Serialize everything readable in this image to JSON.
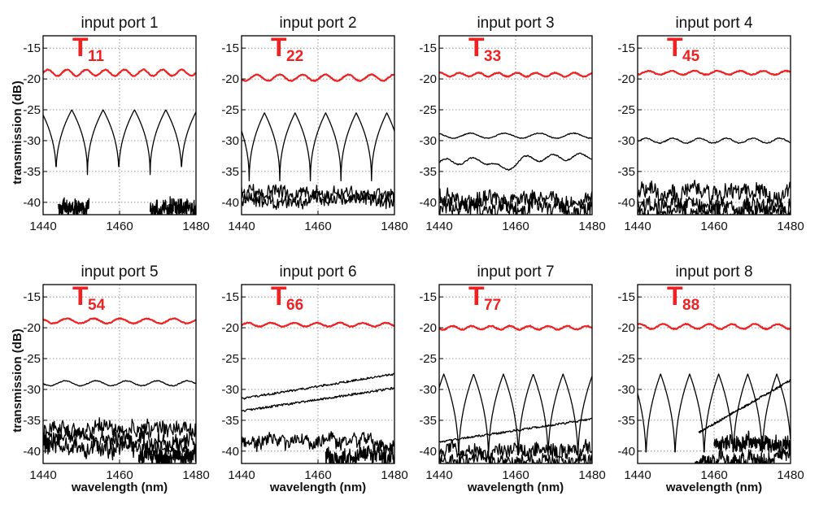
{
  "figure": {
    "ylabel": "transmission (dB)",
    "xlabel": "wavelength (nm)"
  },
  "colors": {
    "highlight": "#ee2222",
    "trace": "#000000",
    "grid": "#7a7a7a"
  },
  "chart_data": [
    {
      "type": "line",
      "title": "input port 1",
      "annotation": "T",
      "annotation_sub": "11",
      "xlim": [
        1440,
        1480
      ],
      "ylim": [
        -42,
        -13
      ],
      "xticks": [
        1440,
        1460,
        1480
      ],
      "yticks": [
        -15,
        -20,
        -25,
        -30,
        -35,
        -40
      ],
      "xlabel": "",
      "ylabel": "transmission (dB)",
      "grid": true,
      "series": [
        {
          "color": "#ee2222",
          "style": "wavy",
          "base": -19.0,
          "amp": 0.5,
          "period": 5,
          "x": [
            1440,
            1480
          ]
        },
        {
          "color": "#000000",
          "style": "comb",
          "top": -25.0,
          "bottom": -35.5,
          "period": 8.2,
          "phase": 1447.5,
          "x": [
            1440,
            1480
          ]
        },
        {
          "color": "#000000",
          "style": "noise",
          "base": -41.0,
          "amp": 1.2,
          "x": [
            1444,
            1452
          ]
        },
        {
          "color": "#000000",
          "style": "noise",
          "base": -41.0,
          "amp": 1.5,
          "x": [
            1468,
            1480
          ]
        }
      ]
    },
    {
      "type": "line",
      "title": "input port 2",
      "annotation": "T",
      "annotation_sub": "22",
      "xlim": [
        1440,
        1480
      ],
      "ylim": [
        -42,
        -13
      ],
      "xticks": [
        1440,
        1460,
        1480
      ],
      "yticks": [
        -15,
        -20,
        -25,
        -30,
        -35,
        -40
      ],
      "xlabel": "",
      "ylabel": "",
      "grid": true,
      "series": [
        {
          "color": "#ee2222",
          "style": "wavy",
          "base": -19.8,
          "amp": 0.5,
          "period": 6,
          "x": [
            1440,
            1480
          ]
        },
        {
          "color": "#000000",
          "style": "comb",
          "top": -25.5,
          "bottom": -36.5,
          "period": 8.0,
          "phase": 1446.0,
          "x": [
            1440,
            1480
          ]
        },
        {
          "color": "#000000",
          "style": "noise",
          "base": -38.5,
          "amp": 1.2,
          "x": [
            1440,
            1480
          ]
        },
        {
          "color": "#000000",
          "style": "noise",
          "base": -39.5,
          "amp": 1.2,
          "x": [
            1440,
            1480
          ]
        }
      ]
    },
    {
      "type": "line",
      "title": "input port 3",
      "annotation": "T",
      "annotation_sub": "33",
      "xlim": [
        1440,
        1480
      ],
      "ylim": [
        -42,
        -13
      ],
      "xticks": [
        1440,
        1460,
        1480
      ],
      "yticks": [
        -15,
        -20,
        -25,
        -30,
        -35,
        -40
      ],
      "xlabel": "",
      "ylabel": "",
      "grid": true,
      "series": [
        {
          "color": "#ee2222",
          "style": "wavy",
          "base": -19.3,
          "amp": 0.3,
          "period": 5,
          "x": [
            1440,
            1480
          ]
        },
        {
          "color": "#000000",
          "style": "wavy",
          "base": -29.2,
          "amp": 0.4,
          "period": 9,
          "x": [
            1440,
            1480
          ]
        },
        {
          "color": "#000000",
          "style": "dip",
          "base": -33.5,
          "amp": 0.5,
          "period": 7,
          "x": [
            1440,
            1480
          ]
        },
        {
          "color": "#000000",
          "style": "noise",
          "base": -39.5,
          "amp": 1.5,
          "x": [
            1440,
            1480
          ]
        },
        {
          "color": "#000000",
          "style": "noise",
          "base": -41.0,
          "amp": 1.5,
          "x": [
            1440,
            1480
          ]
        }
      ]
    },
    {
      "type": "line",
      "title": "input port 4",
      "annotation": "T",
      "annotation_sub": "45",
      "xlim": [
        1440,
        1480
      ],
      "ylim": [
        -42,
        -13
      ],
      "xticks": [
        1440,
        1460,
        1480
      ],
      "yticks": [
        -15,
        -20,
        -25,
        -30,
        -35,
        -40
      ],
      "xlabel": "",
      "ylabel": "",
      "grid": true,
      "series": [
        {
          "color": "#ee2222",
          "style": "wavy",
          "base": -19.0,
          "amp": 0.3,
          "period": 6,
          "x": [
            1440,
            1480
          ]
        },
        {
          "color": "#000000",
          "style": "wavy",
          "base": -30.0,
          "amp": 0.4,
          "period": 7,
          "x": [
            1440,
            1480
          ]
        },
        {
          "color": "#000000",
          "style": "noise",
          "base": -38.5,
          "amp": 1.5,
          "x": [
            1440,
            1480
          ]
        },
        {
          "color": "#000000",
          "style": "noise",
          "base": -40.5,
          "amp": 1.5,
          "x": [
            1440,
            1480
          ]
        },
        {
          "color": "#000000",
          "style": "noise",
          "base": -41.5,
          "amp": 1.2,
          "x": [
            1440,
            1480
          ]
        }
      ]
    },
    {
      "type": "line",
      "title": "input port 5",
      "annotation": "T",
      "annotation_sub": "54",
      "xlim": [
        1440,
        1480
      ],
      "ylim": [
        -42,
        -13
      ],
      "xticks": [
        1440,
        1460,
        1480
      ],
      "yticks": [
        -15,
        -20,
        -25,
        -30,
        -35,
        -40
      ],
      "xlabel": "wavelength (nm)",
      "ylabel": "transmission (dB)",
      "grid": true,
      "series": [
        {
          "color": "#ee2222",
          "style": "wavy",
          "base": -18.9,
          "amp": 0.4,
          "period": 7,
          "x": [
            1440,
            1480
          ]
        },
        {
          "color": "#000000",
          "style": "wavy",
          "base": -29.0,
          "amp": 0.4,
          "period": 8,
          "x": [
            1440,
            1480
          ]
        },
        {
          "color": "#000000",
          "style": "noise",
          "base": -36.5,
          "amp": 1.5,
          "x": [
            1440,
            1480
          ]
        },
        {
          "color": "#000000",
          "style": "noise",
          "base": -38.0,
          "amp": 1.5,
          "x": [
            1440,
            1480
          ]
        },
        {
          "color": "#000000",
          "style": "noise",
          "base": -39.5,
          "amp": 1.5,
          "x": [
            1440,
            1480
          ]
        },
        {
          "color": "#000000",
          "style": "noise",
          "base": -41.0,
          "amp": 1.5,
          "x": [
            1465,
            1480
          ]
        }
      ]
    },
    {
      "type": "line",
      "title": "input port 6",
      "annotation": "T",
      "annotation_sub": "66",
      "xlim": [
        1440,
        1480
      ],
      "ylim": [
        -42,
        -13
      ],
      "xticks": [
        1440,
        1460,
        1480
      ],
      "yticks": [
        -15,
        -20,
        -25,
        -30,
        -35,
        -40
      ],
      "xlabel": "wavelength (nm)",
      "ylabel": "",
      "grid": true,
      "series": [
        {
          "color": "#ee2222",
          "style": "wavy",
          "base": -19.5,
          "amp": 0.3,
          "period": 6,
          "x": [
            1440,
            1480
          ]
        },
        {
          "color": "#000000",
          "style": "ramp",
          "from": -31.5,
          "to": -27.5,
          "x": [
            1440,
            1480
          ]
        },
        {
          "color": "#000000",
          "style": "ramp",
          "from": -33.5,
          "to": -29.8,
          "x": [
            1440,
            1480
          ]
        },
        {
          "color": "#000000",
          "style": "noise",
          "base": -38.5,
          "amp": 1.3,
          "x": [
            1440,
            1480
          ]
        },
        {
          "color": "#000000",
          "style": "noise",
          "base": -41.0,
          "amp": 1.5,
          "x": [
            1462,
            1480
          ]
        }
      ]
    },
    {
      "type": "line",
      "title": "input port 7",
      "annotation": "T",
      "annotation_sub": "77",
      "xlim": [
        1440,
        1480
      ],
      "ylim": [
        -42,
        -13
      ],
      "xticks": [
        1440,
        1460,
        1480
      ],
      "yticks": [
        -15,
        -20,
        -25,
        -30,
        -35,
        -40
      ],
      "xlabel": "wavelength (nm)",
      "ylabel": "",
      "grid": true,
      "series": [
        {
          "color": "#ee2222",
          "style": "wavy",
          "base": -20.0,
          "amp": 0.3,
          "period": 5,
          "x": [
            1440,
            1480
          ]
        },
        {
          "color": "#000000",
          "style": "comb",
          "top": -27.5,
          "bottom": -42.0,
          "period": 7.8,
          "phase": 1449.0,
          "x": [
            1440,
            1480
          ]
        },
        {
          "color": "#000000",
          "style": "ramp",
          "from": -38.5,
          "to": -34.8,
          "x": [
            1440,
            1480
          ]
        },
        {
          "color": "#000000",
          "style": "noise",
          "base": -40.0,
          "amp": 1.4,
          "x": [
            1440,
            1480
          ]
        },
        {
          "color": "#000000",
          "style": "noise",
          "base": -41.5,
          "amp": 1.2,
          "x": [
            1440,
            1480
          ]
        }
      ]
    },
    {
      "type": "line",
      "title": "input port 8",
      "annotation": "T",
      "annotation_sub": "88",
      "xlim": [
        1440,
        1480
      ],
      "ylim": [
        -42,
        -13
      ],
      "xticks": [
        1440,
        1460,
        1480
      ],
      "yticks": [
        -15,
        -20,
        -25,
        -30,
        -35,
        -40
      ],
      "xlabel": "wavelength (nm)",
      "ylabel": "",
      "grid": true,
      "series": [
        {
          "color": "#ee2222",
          "style": "wavy",
          "base": -19.8,
          "amp": 0.4,
          "period": 6,
          "x": [
            1440,
            1480
          ]
        },
        {
          "color": "#000000",
          "style": "comb",
          "top": -27.5,
          "bottom": -42.0,
          "period": 7.6,
          "phase": 1446.0,
          "x": [
            1440,
            1480
          ]
        },
        {
          "color": "#000000",
          "style": "ramp",
          "from": -37.0,
          "to": -28.5,
          "x": [
            1456,
            1480
          ]
        },
        {
          "color": "#000000",
          "style": "noise",
          "base": -39.0,
          "amp": 1.5,
          "x": [
            1460,
            1480
          ]
        },
        {
          "color": "#000000",
          "style": "noise",
          "base": -41.5,
          "amp": 1.3,
          "x": [
            1455,
            1480
          ]
        }
      ]
    }
  ]
}
